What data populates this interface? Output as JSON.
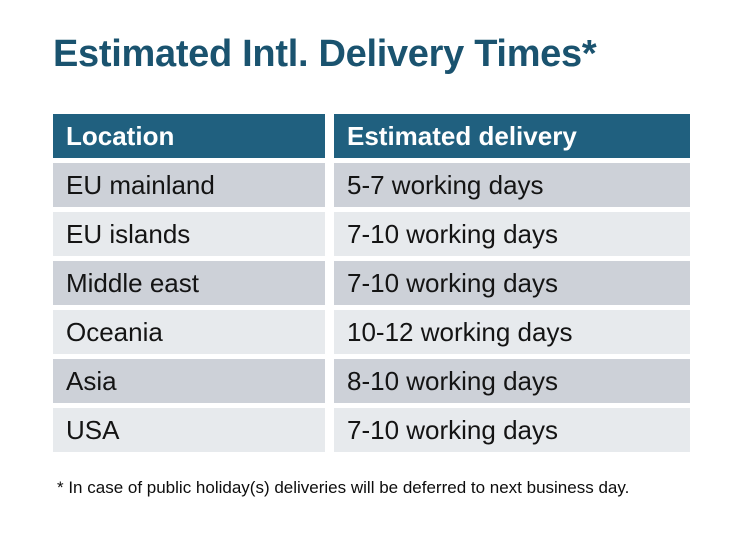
{
  "title": "Estimated Intl. Delivery Times*",
  "table": {
    "headers": [
      "Location",
      "Estimated delivery"
    ],
    "rows": [
      {
        "location": "EU mainland",
        "delivery": "5-7 working days"
      },
      {
        "location": "EU islands",
        "delivery": "7-10 working days"
      },
      {
        "location": "Middle east",
        "delivery": "7-10 working days"
      },
      {
        "location": "Oceania",
        "delivery": "10-12 working days"
      },
      {
        "location": "Asia",
        "delivery": "8-10 working days"
      },
      {
        "location": "USA",
        "delivery": "7-10 working days"
      }
    ]
  },
  "footnote": "* In case of public holiday(s) deliveries will be deferred to next business day.",
  "colors": {
    "title_text": "#1a536f",
    "header_background": "#20607f",
    "header_text": "#ffffff",
    "row_dark": "#cdd1d8",
    "row_light": "#e7eaed",
    "body_text": "#141414"
  }
}
